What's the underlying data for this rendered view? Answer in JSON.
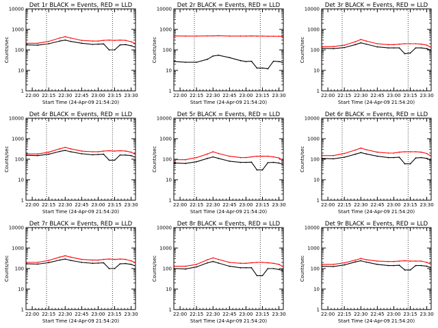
{
  "chart_data": {
    "type": "line",
    "layout": "3x3 grid",
    "xlabel": "Start Time (24-Apr-09 21:54:20)",
    "ylabel": "Counts/sec",
    "x_tick_labels": [
      "22:00",
      "22:15",
      "22:30",
      "22:45",
      "23:00",
      "23:15",
      "23:30"
    ],
    "xlim": [
      "21:54:20",
      "23:34:00"
    ],
    "y_scale": "log",
    "ylim": [
      1,
      10000
    ],
    "y_tick_labels": [
      "1",
      "10",
      "100",
      "1000",
      "10000"
    ],
    "vlines_dotted": [
      "22:13",
      "23:13"
    ],
    "x": [
      "21:55",
      "22:05",
      "22:15",
      "22:25",
      "22:30",
      "22:35",
      "22:45",
      "22:55",
      "23:00",
      "23:05",
      "23:10",
      "23:15",
      "23:20",
      "23:25",
      "23:30",
      "23:33"
    ],
    "series_colors": {
      "Events": "#000000",
      "LLD": "#ff0000"
    },
    "panels": [
      {
        "title": "Det 1r  BLACK = Events, RED = LLD",
        "series": [
          {
            "name": "Events",
            "values": [
              175,
              170,
              200,
              270,
              300,
              260,
              210,
              185,
              190,
              195,
              100,
              100,
              175,
              180,
              160,
              140
            ]
          },
          {
            "name": "LLD",
            "values": [
              210,
              210,
              260,
              380,
              440,
              380,
              290,
              270,
              270,
              290,
              300,
              290,
              300,
              290,
              250,
              210
            ]
          }
        ]
      },
      {
        "title": "Det 2r  BLACK = Events, RED = LLD",
        "series": [
          {
            "name": "Events",
            "values": [
              27,
              25,
              25,
              35,
              50,
              55,
              42,
              30,
              27,
              28,
              13,
              13,
              12,
              28,
              27,
              25
            ]
          },
          {
            "name": "LLD",
            "values": [
              480,
              470,
              470,
              480,
              480,
              490,
              470,
              470,
              470,
              480,
              470,
              470,
              460,
              460,
              460,
              460
            ]
          }
        ]
      },
      {
        "title": "Det 3r  BLACK = Events, RED = LLD",
        "series": [
          {
            "name": "Events",
            "values": [
              120,
              115,
              130,
              180,
              220,
              190,
              140,
              125,
              125,
              125,
              65,
              70,
              125,
              125,
              115,
              100
            ]
          },
          {
            "name": "LLD",
            "values": [
              145,
              145,
              170,
              250,
              320,
              270,
              200,
              180,
              180,
              190,
              200,
              200,
              200,
              190,
              170,
              140
            ]
          }
        ]
      },
      {
        "title": "Det 4r  BLACK = Events, RED = LLD",
        "series": [
          {
            "name": "Events",
            "values": [
              155,
              150,
              175,
              240,
              270,
              230,
              185,
              165,
              170,
              175,
              90,
              90,
              160,
              160,
              150,
              130
            ]
          },
          {
            "name": "LLD",
            "values": [
              180,
              180,
              220,
              320,
              380,
              320,
              250,
              230,
              230,
              250,
              260,
              250,
              260,
              250,
              220,
              180
            ]
          }
        ]
      },
      {
        "title": "Det 5r  BLACK = Events, RED = LLD",
        "series": [
          {
            "name": "Events",
            "values": [
              65,
              62,
              75,
              110,
              130,
              110,
              80,
              70,
              70,
              72,
              30,
              30,
              68,
              70,
              65,
              58
            ]
          },
          {
            "name": "LLD",
            "values": [
              95,
              95,
              120,
              180,
              230,
              190,
              140,
              120,
              120,
              130,
              140,
              140,
              140,
              130,
              115,
              95
            ]
          }
        ]
      },
      {
        "title": "Det 6r  BLACK = Events, RED = LLD",
        "series": [
          {
            "name": "Events",
            "values": [
              110,
              105,
              125,
              175,
              210,
              180,
              140,
              120,
              120,
              125,
              60,
              60,
              115,
              120,
              110,
              95
            ]
          },
          {
            "name": "LLD",
            "values": [
              150,
              150,
              190,
              280,
              350,
              290,
              220,
              200,
              200,
              220,
              230,
              230,
              230,
              220,
              190,
              150
            ]
          }
        ]
      },
      {
        "title": "Det 7r  BLACK = Events, RED = LLD",
        "series": [
          {
            "name": "Events",
            "values": [
              170,
              165,
              195,
              260,
              290,
              250,
              200,
              180,
              185,
              190,
              100,
              100,
              170,
              175,
              160,
              140
            ]
          },
          {
            "name": "LLD",
            "values": [
              200,
              200,
              250,
              360,
              420,
              360,
              280,
              260,
              260,
              280,
              290,
              280,
              290,
              280,
              240,
              200
            ]
          }
        ]
      },
      {
        "title": "Det 8r  BLACK = Events, RED = LLD",
        "series": [
          {
            "name": "Events",
            "values": [
              100,
              95,
              120,
              190,
              220,
              185,
              130,
              110,
              110,
              110,
              45,
              45,
              100,
              100,
              90,
              80
            ]
          },
          {
            "name": "LLD",
            "values": [
              130,
              130,
              160,
              270,
              330,
              280,
              200,
              180,
              180,
              190,
              200,
              200,
              190,
              180,
              160,
              130
            ]
          }
        ]
      },
      {
        "title": "Det 9r  BLACK = Events, RED = LLD",
        "series": [
          {
            "name": "Events",
            "values": [
              130,
              125,
              150,
              210,
              240,
              205,
              160,
              140,
              140,
              145,
              85,
              85,
              140,
              140,
              130,
              115
            ]
          },
          {
            "name": "LLD",
            "values": [
              160,
              160,
              190,
              260,
              310,
              270,
              230,
              220,
              220,
              230,
              240,
              230,
              230,
              230,
              200,
              170
            ]
          }
        ]
      }
    ]
  }
}
